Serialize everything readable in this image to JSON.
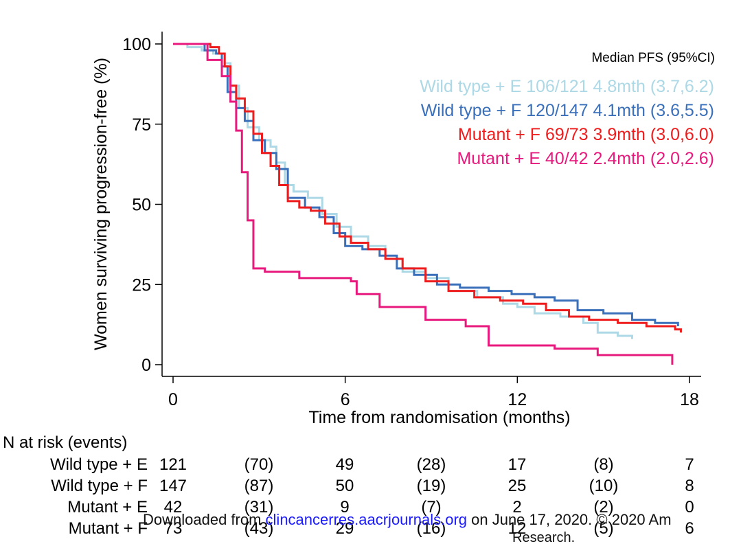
{
  "chart_data": {
    "type": "line",
    "title": "",
    "xlabel": "Time from randomisation (months)",
    "ylabel": "Women surviving progression-free (%)",
    "xlim": [
      0,
      18
    ],
    "ylim": [
      0,
      100
    ],
    "xticks": [
      "0",
      "6",
      "12",
      "18"
    ],
    "yticks": [
      "0",
      "25",
      "50",
      "75",
      "100"
    ],
    "legend_title": "Median PFS (95%CI)",
    "legend_position": "top-right",
    "series": [
      {
        "label": "Wild type + E 106/121 4.8mth (3.7,6.2)",
        "color": "#add8e6",
        "points": [
          [
            0,
            100
          ],
          [
            0.5,
            99
          ],
          [
            1,
            98
          ],
          [
            1.4,
            97
          ],
          [
            1.8,
            94
          ],
          [
            2.0,
            87
          ],
          [
            2.3,
            80
          ],
          [
            2.6,
            74
          ],
          [
            3.0,
            70
          ],
          [
            3.4,
            68
          ],
          [
            3.6,
            63
          ],
          [
            3.9,
            56
          ],
          [
            4.2,
            54
          ],
          [
            4.7,
            52
          ],
          [
            5.2,
            47
          ],
          [
            5.7,
            43
          ],
          [
            6.2,
            40
          ],
          [
            6.8,
            37
          ],
          [
            7.4,
            33
          ],
          [
            8.0,
            29
          ],
          [
            8.8,
            27
          ],
          [
            9.6,
            23
          ],
          [
            10.6,
            21
          ],
          [
            11.5,
            19
          ],
          [
            12.0,
            18
          ],
          [
            12.6,
            16
          ],
          [
            13.5,
            15
          ],
          [
            14.3,
            13
          ],
          [
            14.8,
            10
          ],
          [
            15.5,
            9
          ],
          [
            16.0,
            8
          ]
        ]
      },
      {
        "label": "Wild type + F 120/147 4.1mth (3.6,5.5)",
        "color": "#3a6fba",
        "points": [
          [
            0,
            100
          ],
          [
            0.8,
            100
          ],
          [
            1.1,
            98
          ],
          [
            1.5,
            97
          ],
          [
            1.7,
            93
          ],
          [
            1.9,
            85
          ],
          [
            2.2,
            80
          ],
          [
            2.5,
            76
          ],
          [
            2.8,
            70
          ],
          [
            3.2,
            66
          ],
          [
            3.6,
            61
          ],
          [
            4.0,
            52
          ],
          [
            4.6,
            49
          ],
          [
            5.1,
            46
          ],
          [
            5.6,
            41
          ],
          [
            6.0,
            37
          ],
          [
            6.6,
            36
          ],
          [
            7.2,
            34
          ],
          [
            7.8,
            30
          ],
          [
            8.4,
            28
          ],
          [
            9.2,
            25
          ],
          [
            10.0,
            24
          ],
          [
            11.0,
            23
          ],
          [
            11.8,
            22
          ],
          [
            12.6,
            21
          ],
          [
            13.3,
            20
          ],
          [
            14.1,
            17
          ],
          [
            15.0,
            16
          ],
          [
            16.0,
            14
          ],
          [
            16.8,
            13
          ],
          [
            17.6,
            12
          ]
        ]
      },
      {
        "label": "Mutant + F 69/73 3.9mth (3.0,6.0)",
        "color": "#ee1c1c",
        "points": [
          [
            0,
            100
          ],
          [
            1.3,
            99
          ],
          [
            1.6,
            97
          ],
          [
            1.8,
            93
          ],
          [
            2.0,
            87
          ],
          [
            2.2,
            83
          ],
          [
            2.5,
            79
          ],
          [
            2.8,
            72
          ],
          [
            3.1,
            66
          ],
          [
            3.4,
            62
          ],
          [
            3.7,
            56
          ],
          [
            4.0,
            51
          ],
          [
            4.4,
            49
          ],
          [
            4.8,
            48
          ],
          [
            5.3,
            44
          ],
          [
            5.8,
            40
          ],
          [
            6.2,
            38
          ],
          [
            6.8,
            36
          ],
          [
            7.4,
            33
          ],
          [
            8.0,
            30
          ],
          [
            8.8,
            26
          ],
          [
            9.6,
            23
          ],
          [
            10.5,
            21
          ],
          [
            11.4,
            20
          ],
          [
            12.2,
            19
          ],
          [
            13.0,
            17
          ],
          [
            13.8,
            15
          ],
          [
            14.5,
            14
          ],
          [
            15.5,
            13
          ],
          [
            16.5,
            12
          ],
          [
            17.5,
            11
          ],
          [
            17.7,
            10
          ]
        ]
      },
      {
        "label": "Mutant + E 40/42 2.4mth (2.0,2.6)",
        "color": "#e8197d",
        "points": [
          [
            0,
            100
          ],
          [
            0.8,
            100
          ],
          [
            1.2,
            95
          ],
          [
            1.7,
            90
          ],
          [
            2.0,
            82
          ],
          [
            2.2,
            73
          ],
          [
            2.4,
            60
          ],
          [
            2.6,
            45
          ],
          [
            2.8,
            30
          ],
          [
            3.2,
            29
          ],
          [
            4.4,
            27
          ],
          [
            6.2,
            26
          ],
          [
            6.4,
            22
          ],
          [
            7.2,
            18
          ],
          [
            8.8,
            14
          ],
          [
            10.2,
            12
          ],
          [
            11.0,
            6
          ],
          [
            13.3,
            5
          ],
          [
            14.8,
            3
          ],
          [
            16.0,
            3
          ],
          [
            17.4,
            0
          ]
        ]
      }
    ],
    "risk_table": {
      "heading": "N at risk (events)",
      "rows": [
        {
          "label": "Wild type + E",
          "values": [
            "121",
            "(70)",
            "49",
            "(28)",
            "17",
            "(8)",
            "7"
          ]
        },
        {
          "label": "Wild type + F",
          "values": [
            "147",
            "(87)",
            "50",
            "(19)",
            "25",
            "(10)",
            "8"
          ]
        },
        {
          "label": "Mutant + E",
          "values": [
            "42",
            "(31)",
            "9",
            "(7)",
            "2",
            "(2)",
            "0"
          ]
        },
        {
          "label": "Mutant + F",
          "values": [
            "73",
            "(43)",
            "29",
            "(16)",
            "12",
            "(5)",
            "6"
          ]
        }
      ]
    }
  },
  "footer": {
    "prefix": "Downloaded from ",
    "link": "clincancerres.aacrjournals.org",
    "suffix": " on June 17, 2020. © 2020 Am",
    "line2": "Research."
  }
}
